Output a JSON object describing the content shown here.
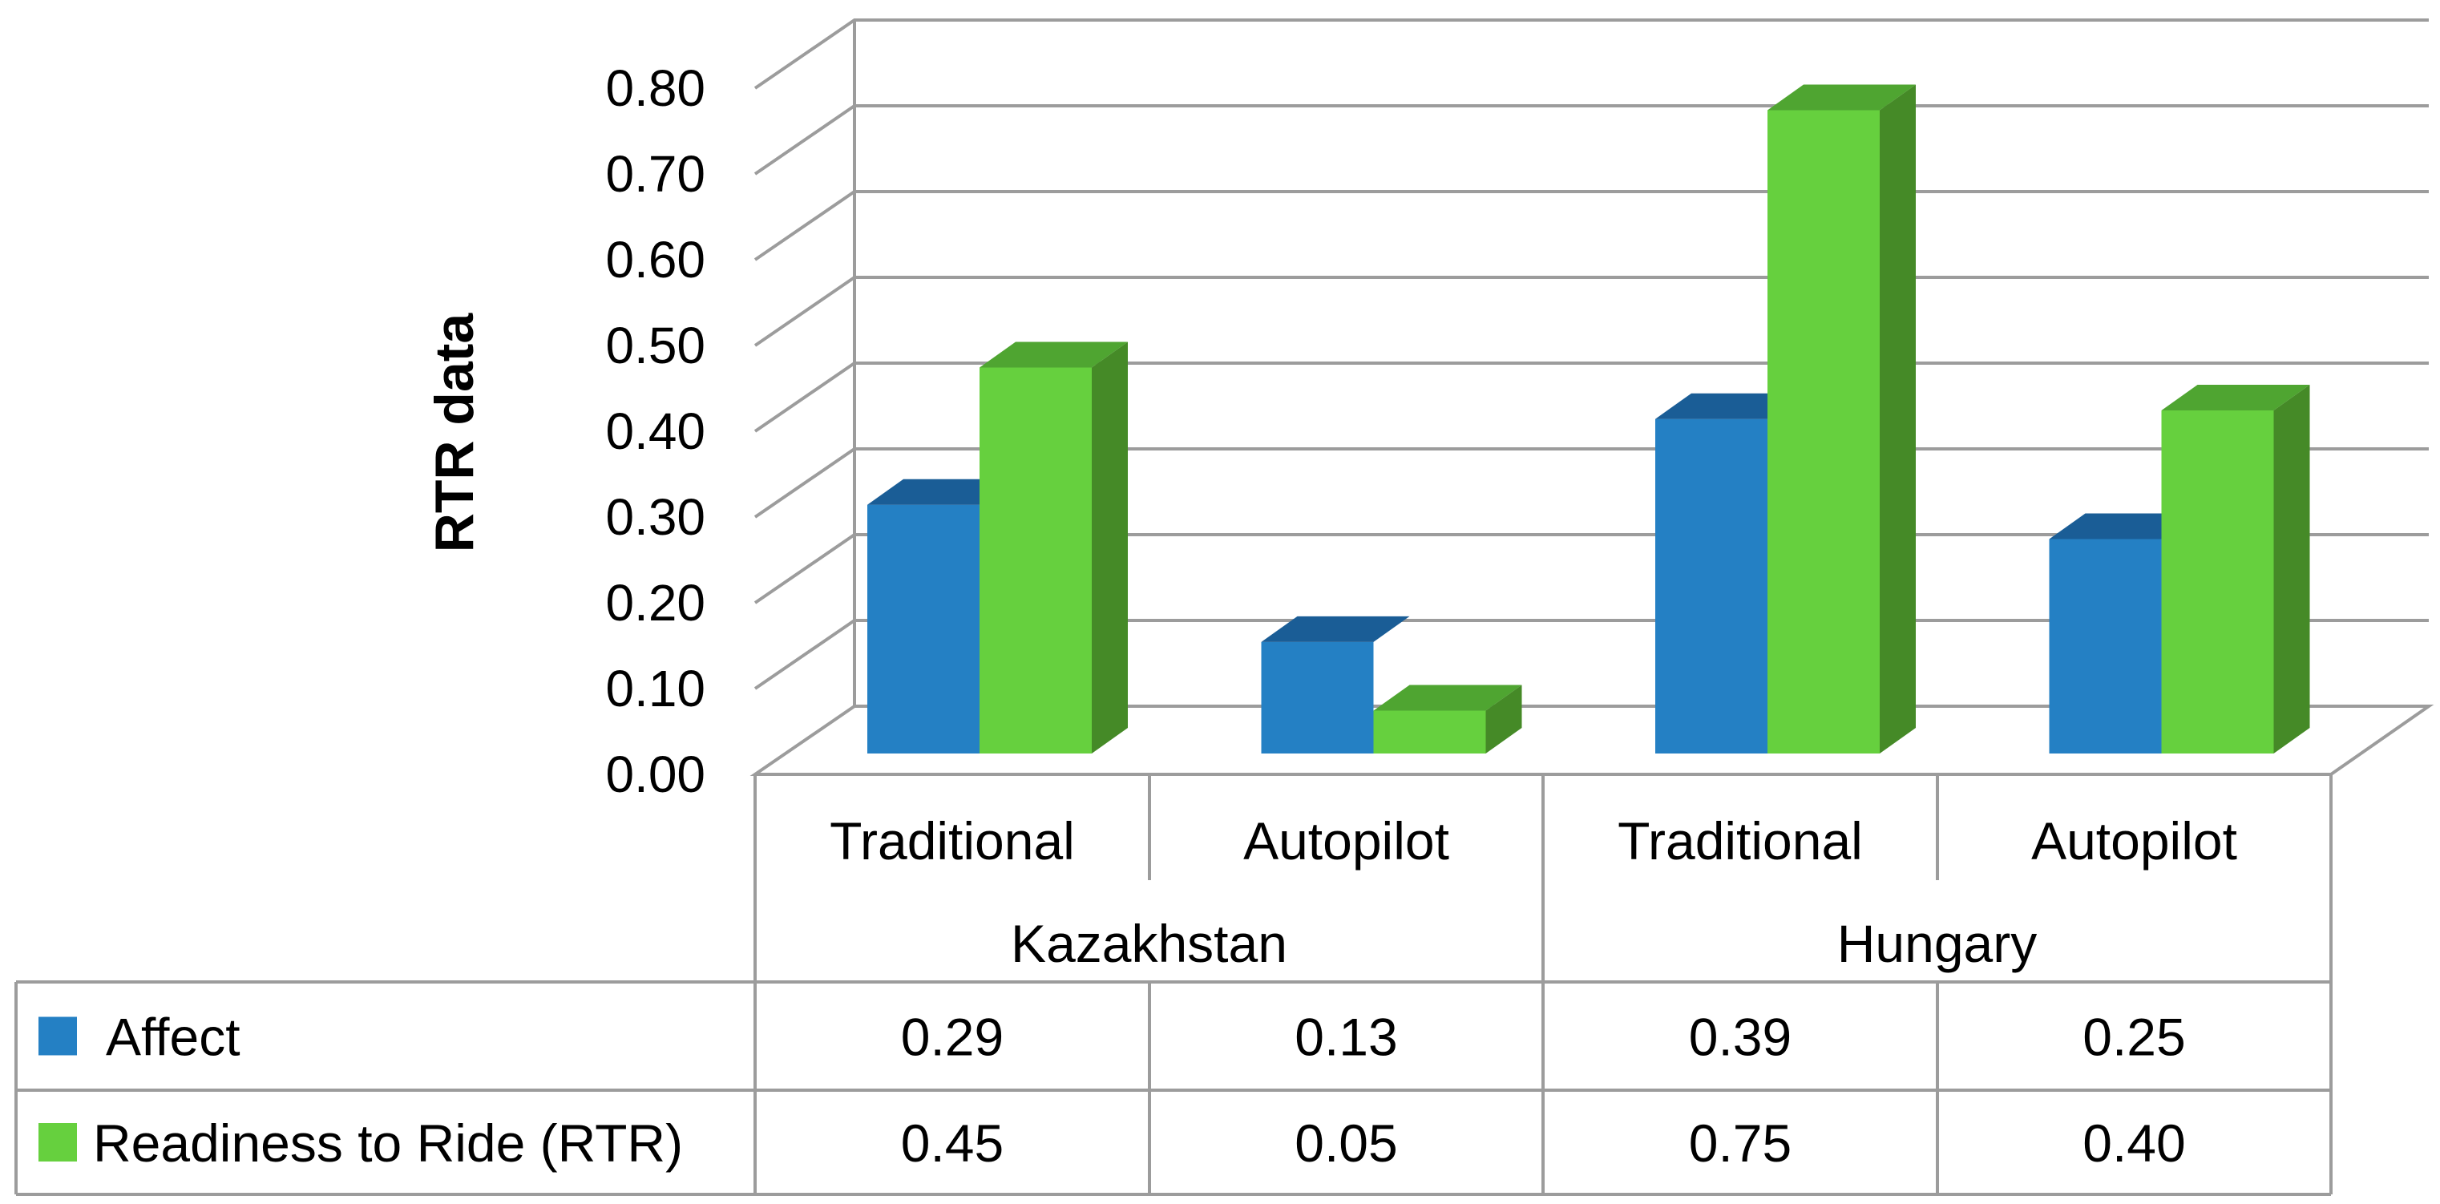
{
  "chart_data": {
    "type": "bar",
    "style": "3d-clustered-column-with-data-table",
    "ylabel": "RTR data",
    "ylim": [
      0,
      0.8
    ],
    "yticks": [
      "0.00",
      "0.10",
      "0.20",
      "0.30",
      "0.40",
      "0.50",
      "0.60",
      "0.70",
      "0.80"
    ],
    "groups": [
      {
        "label": "Kazakhstan",
        "categories": [
          "Traditional",
          "Autopilot"
        ]
      },
      {
        "label": "Hungary",
        "categories": [
          "Traditional",
          "Autopilot"
        ]
      }
    ],
    "categories": [
      "Traditional",
      "Autopilot",
      "Traditional",
      "Autopilot"
    ],
    "series": [
      {
        "name": "Affect",
        "values": [
          0.29,
          0.13,
          0.39,
          0.25
        ],
        "value_labels": [
          "0.29",
          "0.13",
          "0.39",
          "0.25"
        ],
        "color": "#2480c4",
        "top_color": "#1a5d96",
        "side_color": "#134a7a"
      },
      {
        "name": "Readiness to Ride (RTR)",
        "values": [
          0.45,
          0.05,
          0.75,
          0.4
        ],
        "value_labels": [
          "0.45",
          "0.05",
          "0.75",
          "0.40"
        ],
        "color": "#66d03e",
        "top_color": "#4fa531",
        "side_color": "#458a27"
      }
    ],
    "grid": true,
    "legend": "data-table-left"
  }
}
